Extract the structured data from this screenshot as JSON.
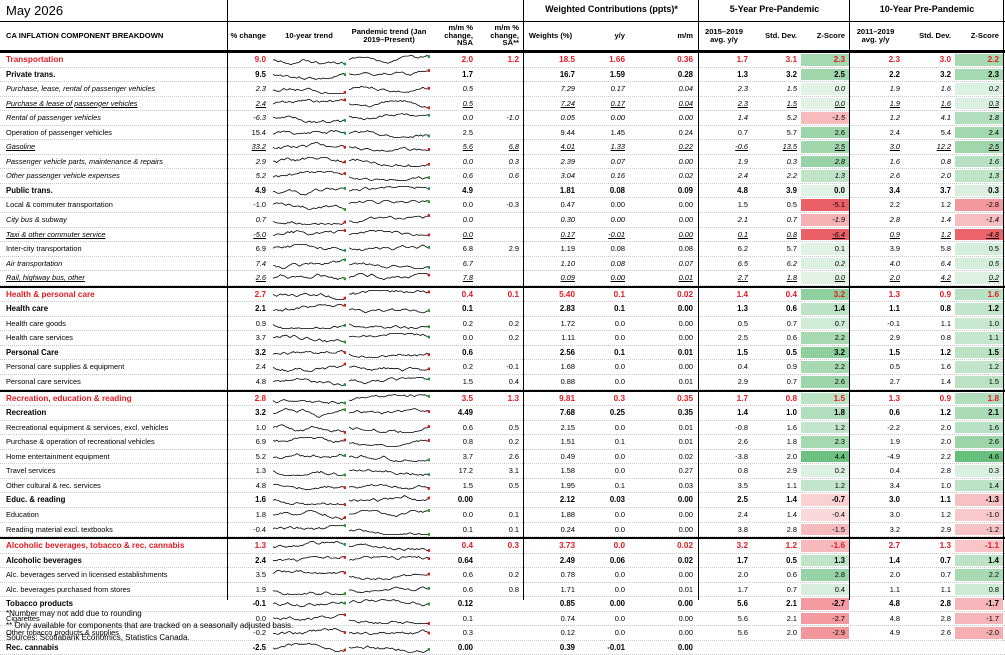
{
  "title": "May 2026",
  "group_headers": {
    "weighted": "Weighted Contributions (ppts)*",
    "pre5": "5-Year Pre-Pandemic",
    "pre10": "10-Year Pre-Pandemic"
  },
  "columns": {
    "name": "CA INFLATION COMPONENT BREAKDOWN",
    "yy": "y/y % change",
    "trend10": "10-year trend",
    "trendp": "Pandemic trend (Jan 2019–Present)",
    "mm": "m/m % change, NSA",
    "mmsa": "m/m % change, SA**",
    "weights": "Weights (%)",
    "wyy": "y/y",
    "wmm": "m/m",
    "avg5": "2015–2019 avg. y/y",
    "std5": "Std. Dev.",
    "z5": "Z-Score",
    "avg10": "2011–2019 avg. y/y",
    "std10": "Std. Dev.",
    "z10": "Z-Score"
  },
  "rows": [
    {
      "name": "Transportation",
      "style": "sec",
      "yy": "9.0",
      "mm": "2.0",
      "mmsa": "1.2",
      "w": "18.5",
      "wyy": "1.66",
      "wmm": "0.36",
      "a5": "1.7",
      "s5": "3.1",
      "z5": "2.3",
      "a10": "2.3",
      "s10": "3.0",
      "z10": "2.2"
    },
    {
      "name": "Private trans.",
      "style": "bold",
      "yy": "9.5",
      "mm": "1.7",
      "mmsa": "",
      "w": "16.7",
      "wyy": "1.59",
      "wmm": "0.28",
      "a5": "1.3",
      "s5": "3.2",
      "z5": "2.5",
      "a10": "2.2",
      "s10": "3.2",
      "z10": "2.3"
    },
    {
      "name": "Purchase, lease, rental of passenger vehicles",
      "style": "ital",
      "yy": "2.3",
      "mm": "0.5",
      "mmsa": "",
      "w": "7.29",
      "wyy": "0.17",
      "wmm": "0.04",
      "a5": "2.3",
      "s5": "1.5",
      "z5": "0.0",
      "a10": "1.9",
      "s10": "1.6",
      "z10": "0.2"
    },
    {
      "name": "Purchase & lease of passenger vehicles",
      "style": "ital uline",
      "yy": "2.4",
      "mm": "0.5",
      "mmsa": "",
      "w": "7.24",
      "wyy": "0.17",
      "wmm": "0.04",
      "a5": "2.3",
      "s5": "1.5",
      "z5": "0.0",
      "a10": "1.9",
      "s10": "1.6",
      "z10": "0.3"
    },
    {
      "name": "Rental of passenger vehicles",
      "style": "ital",
      "yy": "-6.3",
      "mm": "0.0",
      "mmsa": "-1.0",
      "w": "0.05",
      "wyy": "0.00",
      "wmm": "0.00",
      "a5": "1.4",
      "s5": "5.2",
      "z5": "-1.5",
      "a10": "1.2",
      "s10": "4.1",
      "z10": "1.8"
    },
    {
      "name": "Operation of passenger vehicles",
      "style": "",
      "yy": "15.4",
      "mm": "2.5",
      "mmsa": "",
      "w": "9.44",
      "wyy": "1.45",
      "wmm": "0.24",
      "a5": "0.7",
      "s5": "5.7",
      "z5": "2.6",
      "a10": "2.4",
      "s10": "5.4",
      "z10": "2.4"
    },
    {
      "name": "Gasoline",
      "style": "ital uline",
      "yy": "33.2",
      "mm": "5.6",
      "mmsa": "6.8",
      "w": "4.01",
      "wyy": "1.33",
      "wmm": "0.22",
      "a5": "-0.6",
      "s5": "13.5",
      "z5": "2.5",
      "a10": "3.0",
      "s10": "12.2",
      "z10": "2.5"
    },
    {
      "name": "Passenger vehicle parts, maintenance & repairs",
      "style": "ital",
      "yy": "2.9",
      "mm": "0.0",
      "mmsa": "0.3",
      "w": "2.39",
      "wyy": "0.07",
      "wmm": "0.00",
      "a5": "1.9",
      "s5": "0.3",
      "z5": "2.8",
      "a10": "1.6",
      "s10": "0.8",
      "z10": "1.6"
    },
    {
      "name": "Other passenger vehicle expenses",
      "style": "ital",
      "yy": "5.2",
      "mm": "0.6",
      "mmsa": "0.6",
      "w": "3.04",
      "wyy": "0.16",
      "wmm": "0.02",
      "a5": "2.4",
      "s5": "2.2",
      "z5": "1.3",
      "a10": "2.6",
      "s10": "2.0",
      "z10": "1.3"
    },
    {
      "name": "Public trans.",
      "style": "bold",
      "yy": "4.9",
      "mm": "4.9",
      "mmsa": "",
      "w": "1.81",
      "wyy": "0.08",
      "wmm": "0.09",
      "a5": "4.8",
      "s5": "3.9",
      "z5": "0.0",
      "a10": "3.4",
      "s10": "3.7",
      "z10": "0.3"
    },
    {
      "name": "Local & commuter transportation",
      "style": "",
      "yy": "-1.0",
      "mm": "0.0",
      "mmsa": "-0.3",
      "w": "0.47",
      "wyy": "0.00",
      "wmm": "0.00",
      "a5": "1.5",
      "s5": "0.5",
      "z5": "-5.1",
      "a10": "2.2",
      "s10": "1.2",
      "z10": "-2.8"
    },
    {
      "name": "City bus & subway",
      "style": "ital",
      "yy": "0.7",
      "mm": "0.0",
      "mmsa": "",
      "w": "0.30",
      "wyy": "0.00",
      "wmm": "0.00",
      "a5": "2.1",
      "s5": "0.7",
      "z5": "-1.9",
      "a10": "2.8",
      "s10": "1.4",
      "z10": "-1.4"
    },
    {
      "name": "Taxi & other commuter service",
      "style": "ital uline",
      "yy": "-5.0",
      "mm": "0.0",
      "mmsa": "",
      "w": "0.17",
      "wyy": "-0.01",
      "wmm": "0.00",
      "a5": "0.1",
      "s5": "0.8",
      "z5": "-6.4",
      "a10": "0.9",
      "s10": "1.2",
      "z10": "-4.8"
    },
    {
      "name": "Inter-city transportation",
      "style": "",
      "yy": "6.9",
      "mm": "6.8",
      "mmsa": "2.9",
      "w": "1.19",
      "wyy": "0.08",
      "wmm": "0.08",
      "a5": "6.2",
      "s5": "5.7",
      "z5": "0.1",
      "a10": "3.9",
      "s10": "5.8",
      "z10": "0.5"
    },
    {
      "name": "Air transportation",
      "style": "ital",
      "yy": "7.4",
      "mm": "6.7",
      "mmsa": "",
      "w": "1.10",
      "wyy": "0.08",
      "wmm": "0.07",
      "a5": "6.5",
      "s5": "6.2",
      "z5": "0.2",
      "a10": "4.0",
      "s10": "6.4",
      "z10": "0.5"
    },
    {
      "name": "Rail, highway bus, other",
      "style": "ital uline",
      "yy": "2.6",
      "mm": "7.8",
      "mmsa": "",
      "w": "0.09",
      "wyy": "0.00",
      "wmm": "0.01",
      "a5": "2.7",
      "s5": "1.8",
      "z5": "0.0",
      "a10": "2.0",
      "s10": "4.2",
      "z10": "0.2"
    },
    {
      "name": "Health & personal care",
      "style": "sec",
      "yy": "2.7",
      "mm": "0.4",
      "mmsa": "0.1",
      "w": "5.40",
      "wyy": "0.1",
      "wmm": "0.02",
      "a5": "1.4",
      "s5": "0.4",
      "z5": "3.2",
      "a10": "1.3",
      "s10": "0.9",
      "z10": "1.6"
    },
    {
      "name": "Health care",
      "style": "bold",
      "yy": "2.1",
      "mm": "0.1",
      "mmsa": "",
      "w": "2.83",
      "wyy": "0.1",
      "wmm": "0.00",
      "a5": "1.3",
      "s5": "0.6",
      "z5": "1.4",
      "a10": "1.1",
      "s10": "0.8",
      "z10": "1.2"
    },
    {
      "name": "Health care goods",
      "style": "",
      "yy": "0.9",
      "mm": "0.2",
      "mmsa": "0.2",
      "w": "1.72",
      "wyy": "0.0",
      "wmm": "0.00",
      "a5": "0.5",
      "s5": "0.7",
      "z5": "0.7",
      "a10": "-0.1",
      "s10": "1.1",
      "z10": "1.0"
    },
    {
      "name": "Health care services",
      "style": "",
      "yy": "3.7",
      "mm": "0.0",
      "mmsa": "0.2",
      "w": "1.11",
      "wyy": "0.0",
      "wmm": "0.00",
      "a5": "2.5",
      "s5": "0.6",
      "z5": "2.2",
      "a10": "2.9",
      "s10": "0.8",
      "z10": "1.1"
    },
    {
      "name": "Personal Care",
      "style": "bold",
      "yy": "3.2",
      "mm": "0.6",
      "mmsa": "",
      "w": "2.56",
      "wyy": "0.1",
      "wmm": "0.01",
      "a5": "1.5",
      "s5": "0.5",
      "z5": "3.2",
      "a10": "1.5",
      "s10": "1.2",
      "z10": "1.5"
    },
    {
      "name": "Personal care supplies & equipment",
      "style": "",
      "yy": "2.4",
      "mm": "0.2",
      "mmsa": "-0.1",
      "w": "1.68",
      "wyy": "0.0",
      "wmm": "0.00",
      "a5": "0.4",
      "s5": "0.9",
      "z5": "2.2",
      "a10": "0.5",
      "s10": "1.6",
      "z10": "1.2"
    },
    {
      "name": "Personal care services",
      "style": "",
      "yy": "4.8",
      "mm": "1.5",
      "mmsa": "0.4",
      "w": "0.88",
      "wyy": "0.0",
      "wmm": "0.01",
      "a5": "2.9",
      "s5": "0.7",
      "z5": "2.6",
      "a10": "2.7",
      "s10": "1.4",
      "z10": "1.5"
    },
    {
      "name": "Recreation, education & reading",
      "style": "sec",
      "yy": "2.8",
      "mm": "3.5",
      "mmsa": "1.3",
      "w": "9.81",
      "wyy": "0.3",
      "wmm": "0.35",
      "a5": "1.7",
      "s5": "0.8",
      "z5": "1.5",
      "a10": "1.3",
      "s10": "0.9",
      "z10": "1.8"
    },
    {
      "name": "Recreation",
      "style": "bold",
      "yy": "3.2",
      "mm": "4.49",
      "mmsa": "",
      "w": "7.68",
      "wyy": "0.25",
      "wmm": "0.35",
      "a5": "1.4",
      "s5": "1.0",
      "z5": "1.8",
      "a10": "0.6",
      "s10": "1.2",
      "z10": "2.1"
    },
    {
      "name": "Recreational equipment & services, excl. vehicles",
      "style": "",
      "yy": "1.0",
      "mm": "0.6",
      "mmsa": "0.5",
      "w": "2.15",
      "wyy": "0.0",
      "wmm": "0.01",
      "a5": "-0.8",
      "s5": "1.6",
      "z5": "1.2",
      "a10": "-2.2",
      "s10": "2.0",
      "z10": "1.6"
    },
    {
      "name": "Purchase & operation of recreational vehicles",
      "style": "",
      "yy": "6.9",
      "mm": "0.8",
      "mmsa": "0.2",
      "w": "1.51",
      "wyy": "0.1",
      "wmm": "0.01",
      "a5": "2.6",
      "s5": "1.8",
      "z5": "2.3",
      "a10": "1.9",
      "s10": "2.0",
      "z10": "2.6"
    },
    {
      "name": "Home entertainment equipment",
      "style": "",
      "yy": "5.2",
      "mm": "3.7",
      "mmsa": "2.6",
      "w": "0.49",
      "wyy": "0.0",
      "wmm": "0.02",
      "a5": "-3.8",
      "s5": "2.0",
      "z5": "4.4",
      "a10": "-4.9",
      "s10": "2.2",
      "z10": "4.6"
    },
    {
      "name": "Travel services",
      "style": "",
      "yy": "1.3",
      "mm": "17.2",
      "mmsa": "3.1",
      "w": "1.58",
      "wyy": "0.0",
      "wmm": "0.27",
      "a5": "0.8",
      "s5": "2.9",
      "z5": "0.2",
      "a10": "0.4",
      "s10": "2.8",
      "z10": "0.3"
    },
    {
      "name": "Other cultural & rec. services",
      "style": "",
      "yy": "4.8",
      "mm": "1.5",
      "mmsa": "0.5",
      "w": "1.95",
      "wyy": "0.1",
      "wmm": "0.03",
      "a5": "3.5",
      "s5": "1.1",
      "z5": "1.2",
      "a10": "3.4",
      "s10": "1.0",
      "z10": "1.4"
    },
    {
      "name": "Educ. & reading",
      "style": "bold",
      "yy": "1.6",
      "mm": "0.00",
      "mmsa": "",
      "w": "2.12",
      "wyy": "0.03",
      "wmm": "0.00",
      "a5": "2.5",
      "s5": "1.4",
      "z5": "-0.7",
      "a10": "3.0",
      "s10": "1.1",
      "z10": "-1.3"
    },
    {
      "name": "Education",
      "style": "",
      "yy": "1.8",
      "mm": "0.0",
      "mmsa": "0.1",
      "w": "1.88",
      "wyy": "0.0",
      "wmm": "0.00",
      "a5": "2.4",
      "s5": "1.4",
      "z5": "-0.4",
      "a10": "3.0",
      "s10": "1.2",
      "z10": "-1.0"
    },
    {
      "name": "Reading material excl. textbooks",
      "style": "",
      "yy": "-0.4",
      "mm": "0.1",
      "mmsa": "0.1",
      "w": "0.24",
      "wyy": "0.0",
      "wmm": "0.00",
      "a5": "3.8",
      "s5": "2.8",
      "z5": "-1.5",
      "a10": "3.2",
      "s10": "2.9",
      "z10": "-1.2"
    },
    {
      "name": "Alcoholic beverages, tobacco & rec. cannabis",
      "style": "sec",
      "yy": "1.3",
      "mm": "0.4",
      "mmsa": "0.3",
      "w": "3.73",
      "wyy": "0.0",
      "wmm": "0.02",
      "a5": "3.2",
      "s5": "1.2",
      "z5": "-1.6",
      "a10": "2.7",
      "s10": "1.3",
      "z10": "-1.1"
    },
    {
      "name": "Alcoholic beverages",
      "style": "bold",
      "yy": "2.4",
      "mm": "0.64",
      "mmsa": "",
      "w": "2.49",
      "wyy": "0.06",
      "wmm": "0.02",
      "a5": "1.7",
      "s5": "0.5",
      "z5": "1.3",
      "a10": "1.4",
      "s10": "0.7",
      "z10": "1.4"
    },
    {
      "name": "Alc. beverages served in licensed establishments",
      "style": "",
      "yy": "3.5",
      "mm": "0.6",
      "mmsa": "0.2",
      "w": "0.78",
      "wyy": "0.0",
      "wmm": "0.00",
      "a5": "2.0",
      "s5": "0.6",
      "z5": "2.8",
      "a10": "2.0",
      "s10": "0.7",
      "z10": "2.2"
    },
    {
      "name": "Alc. beverages purchased from stores",
      "style": "",
      "yy": "1.9",
      "mm": "0.6",
      "mmsa": "0.8",
      "w": "1.71",
      "wyy": "0.0",
      "wmm": "0.01",
      "a5": "1.7",
      "s5": "0.7",
      "z5": "0.4",
      "a10": "1.1",
      "s10": "1.1",
      "z10": "0.8"
    },
    {
      "name": "Tobacco products",
      "style": "bold",
      "yy": "-0.1",
      "mm": "0.12",
      "mmsa": "",
      "w": "0.85",
      "wyy": "0.00",
      "wmm": "0.00",
      "a5": "5.6",
      "s5": "2.1",
      "z5": "-2.7",
      "a10": "4.8",
      "s10": "2.8",
      "z10": "-1.7"
    },
    {
      "name": "Cigarettes",
      "style": "",
      "yy": "0.0",
      "mm": "0.1",
      "mmsa": "",
      "w": "0.74",
      "wyy": "0.0",
      "wmm": "0.00",
      "a5": "5.6",
      "s5": "2.1",
      "z5": "-2.7",
      "a10": "4.8",
      "s10": "2.8",
      "z10": "-1.7"
    },
    {
      "name": "Other tobacco products & supplies",
      "style": "",
      "yy": "-0.2",
      "mm": "0.3",
      "mmsa": "",
      "w": "0.12",
      "wyy": "0.0",
      "wmm": "0.00",
      "a5": "5.6",
      "s5": "2.0",
      "z5": "-2.9",
      "a10": "4.9",
      "s10": "2.6",
      "z10": "-2.0"
    },
    {
      "name": "Rec. cannabis",
      "style": "bold",
      "yy": "-2.5",
      "mm": "0.00",
      "mmsa": "",
      "w": "0.39",
      "wyy": "-0.01",
      "wmm": "0.00",
      "a5": "",
      "s5": "",
      "z5": "",
      "a10": "",
      "s10": "",
      "z10": ""
    }
  ],
  "footnotes": [
    "*Number may not add due to rounding",
    "** Only available for components that are tracked on a seasonally adjusted basis.",
    "Sources: Scotiabank Economics, Statistics Canada."
  ],
  "colors": {
    "accent_red": "#e31b23",
    "zscore_positive": "#3fae5a",
    "zscore_negative": "#e8434b",
    "sparkline": "#000000",
    "sparkline_up": "#1f9a3e",
    "sparkline_down": "#d7191c"
  }
}
